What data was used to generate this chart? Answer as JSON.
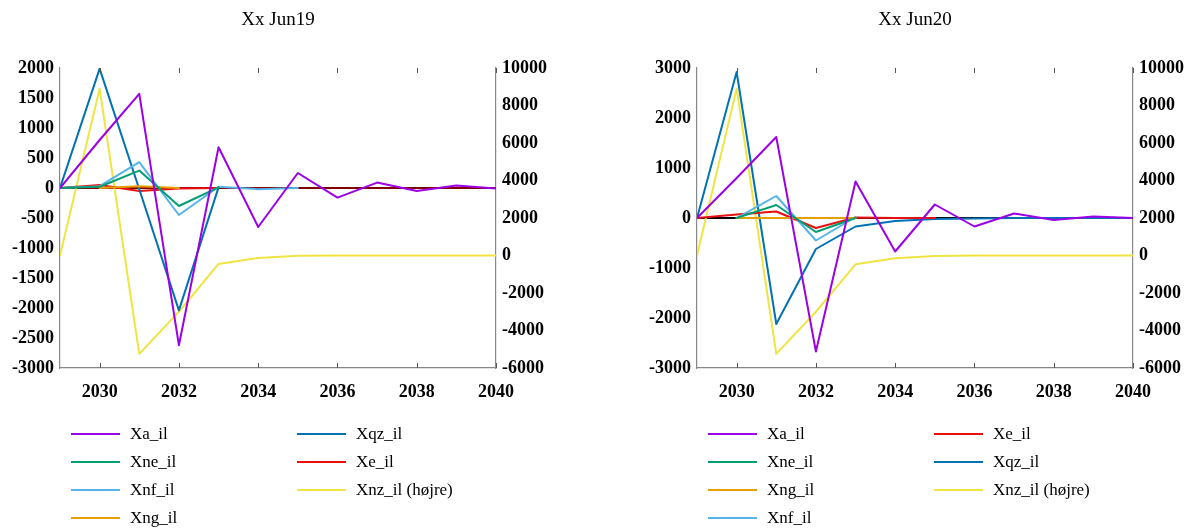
{
  "chart_data": [
    {
      "type": "line",
      "title": "Xx Jun19",
      "x": [
        2029,
        2030,
        2031,
        2032,
        2033,
        2034,
        2035,
        2036,
        2037,
        2038,
        2039,
        2040
      ],
      "xlim": [
        2029,
        2040
      ],
      "xticks": [
        2030,
        2032,
        2034,
        2036,
        2038,
        2040
      ],
      "ylim": [
        -3000,
        2000
      ],
      "yticks": [
        -3000,
        -2500,
        -2000,
        -1500,
        -1000,
        -500,
        0,
        500,
        1000,
        1500,
        2000
      ],
      "y2lim": [
        -6000,
        10000
      ],
      "y2ticks": [
        -6000,
        -4000,
        -2000,
        0,
        2000,
        4000,
        6000,
        8000,
        10000
      ],
      "grid": false,
      "legend": "bottom",
      "ref_lines": [
        {
          "axis": "y",
          "value": 0,
          "color": "#800000"
        }
      ],
      "series": [
        {
          "name": "Xa_il",
          "color": "#9b00e6",
          "values": [
            0,
            800,
            1570,
            -2620,
            680,
            -650,
            250,
            -160,
            90,
            -50,
            40,
            -10
          ]
        },
        {
          "name": "Xne_il",
          "color": "#009e73",
          "values": [
            0,
            20,
            290,
            -300,
            10,
            null,
            null,
            null,
            null,
            null,
            null,
            null
          ]
        },
        {
          "name": "Xnf_il",
          "color": "#56b4e9",
          "values": [
            0,
            30,
            430,
            -450,
            20,
            -20,
            0,
            null,
            null,
            null,
            null,
            null
          ]
        },
        {
          "name": "Xng_il",
          "color": "#e69f00",
          "values": [
            null,
            0,
            30,
            0,
            null,
            null,
            null,
            null,
            null,
            null,
            null,
            null
          ]
        },
        {
          "name": "Xqz_il",
          "color": "#0072b2",
          "values": [
            0,
            1990,
            -20,
            -2040,
            10,
            null,
            null,
            null,
            null,
            null,
            null,
            null
          ]
        },
        {
          "name": "Xe_il",
          "color": "#e81010",
          "values": [
            0,
            50,
            -50,
            -10,
            0,
            null,
            null,
            null,
            null,
            null,
            null,
            null
          ]
        },
        {
          "name": "Xnz_il (højre)",
          "color": "#f0e442",
          "axis": "y2",
          "values": [
            0,
            8900,
            -5250,
            -3000,
            -450,
            -130,
            -10,
            0,
            0,
            0,
            0,
            0
          ]
        }
      ]
    },
    {
      "type": "line",
      "title": "Xx Jun20",
      "x": [
        2029,
        2030,
        2031,
        2032,
        2033,
        2034,
        2035,
        2036,
        2037,
        2038,
        2039,
        2040
      ],
      "xlim": [
        2029,
        2040
      ],
      "xticks": [
        2030,
        2032,
        2034,
        2036,
        2038,
        2040
      ],
      "ylim": [
        -3000,
        3000
      ],
      "yticks": [
        -3000,
        -2000,
        -1000,
        0,
        1000,
        2000,
        3000
      ],
      "y2lim": [
        -6000,
        10000
      ],
      "y2ticks": [
        -6000,
        -4000,
        -2000,
        0,
        2000,
        4000,
        6000,
        8000,
        10000
      ],
      "grid": false,
      "legend": "bottom",
      "ref_lines": [
        {
          "axis": "y",
          "value": 0,
          "color": "#000000"
        }
      ],
      "series": [
        {
          "name": "Xa_il",
          "color": "#9b00e6",
          "values": [
            0,
            800,
            1620,
            -2670,
            730,
            -670,
            270,
            -170,
            90,
            -40,
            30,
            0
          ]
        },
        {
          "name": "Xne_il",
          "color": "#009e73",
          "values": [
            null,
            0,
            260,
            -280,
            0,
            null,
            null,
            null,
            null,
            null,
            null,
            null
          ]
        },
        {
          "name": "Xng_il",
          "color": "#e69f00",
          "values": [
            null,
            0,
            0,
            0,
            0,
            null,
            null,
            null,
            null,
            null,
            null,
            null
          ]
        },
        {
          "name": "Xnf_il",
          "color": "#56b4e9",
          "values": [
            null,
            0,
            440,
            -450,
            20,
            null,
            null,
            null,
            null,
            null,
            null,
            null
          ]
        },
        {
          "name": "Xe_il",
          "color": "#e81010",
          "values": [
            0,
            70,
            130,
            -200,
            10,
            0,
            0,
            null,
            null,
            null,
            null,
            null
          ]
        },
        {
          "name": "Xqz_il",
          "color": "#0072b2",
          "values": [
            0,
            2920,
            -2120,
            -620,
            -170,
            -60,
            -20,
            -10,
            0,
            0,
            0,
            0
          ]
        },
        {
          "name": "Xnz_il (højre)",
          "color": "#f0e442",
          "axis": "y2",
          "values": [
            0,
            8900,
            -5250,
            -3000,
            -470,
            -150,
            -30,
            0,
            0,
            0,
            0,
            0
          ]
        }
      ]
    }
  ]
}
